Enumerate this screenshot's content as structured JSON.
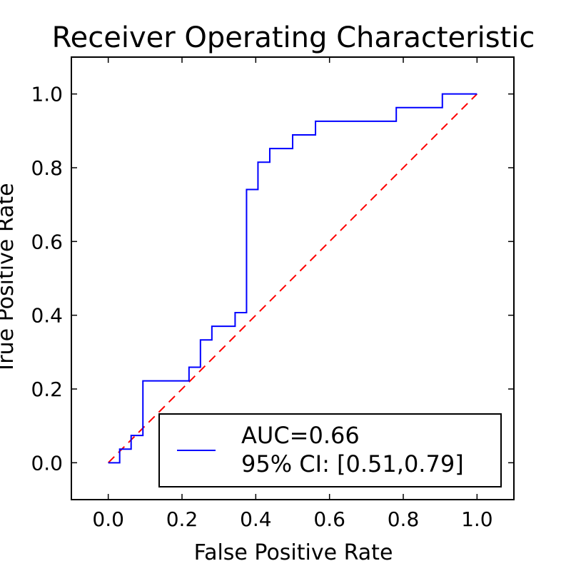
{
  "chart_data": {
    "type": "line",
    "title": "Receiver Operating Characteristic",
    "xlabel": "False Positive Rate",
    "ylabel": "True Positive Rate",
    "xlim": [
      -0.1,
      1.1
    ],
    "ylim": [
      -0.1,
      1.1
    ],
    "xticks": [
      "0.0",
      "0.2",
      "0.4",
      "0.6",
      "0.8",
      "1.0"
    ],
    "yticks": [
      "0.0",
      "0.2",
      "0.4",
      "0.6",
      "0.8",
      "1.0"
    ],
    "grid": false,
    "legend_position": "lower-right",
    "series": [
      {
        "name": "AUC=0.66\n95% CI: [0.51,0.79]",
        "legend_lines": [
          "AUC=0.66",
          "95% CI: [0.51,0.79]"
        ],
        "color": "#0000ff",
        "style": "step",
        "x": [
          0.0,
          0.031,
          0.031,
          0.062,
          0.062,
          0.094,
          0.094,
          0.219,
          0.219,
          0.25,
          0.25,
          0.281,
          0.281,
          0.344,
          0.344,
          0.375,
          0.375,
          0.406,
          0.406,
          0.438,
          0.438,
          0.5,
          0.5,
          0.562,
          0.562,
          0.781,
          0.781,
          0.906,
          0.906,
          1.0
        ],
        "y": [
          0.0,
          0.0,
          0.037,
          0.037,
          0.074,
          0.074,
          0.222,
          0.222,
          0.259,
          0.259,
          0.333,
          0.333,
          0.37,
          0.37,
          0.407,
          0.407,
          0.741,
          0.741,
          0.815,
          0.815,
          0.852,
          0.852,
          0.889,
          0.889,
          0.926,
          0.926,
          0.963,
          0.963,
          1.0,
          1.0
        ]
      },
      {
        "name": "",
        "color": "#ff0000",
        "style": "dashed",
        "x": [
          0.0,
          1.0
        ],
        "y": [
          0.0,
          1.0
        ]
      }
    ]
  }
}
